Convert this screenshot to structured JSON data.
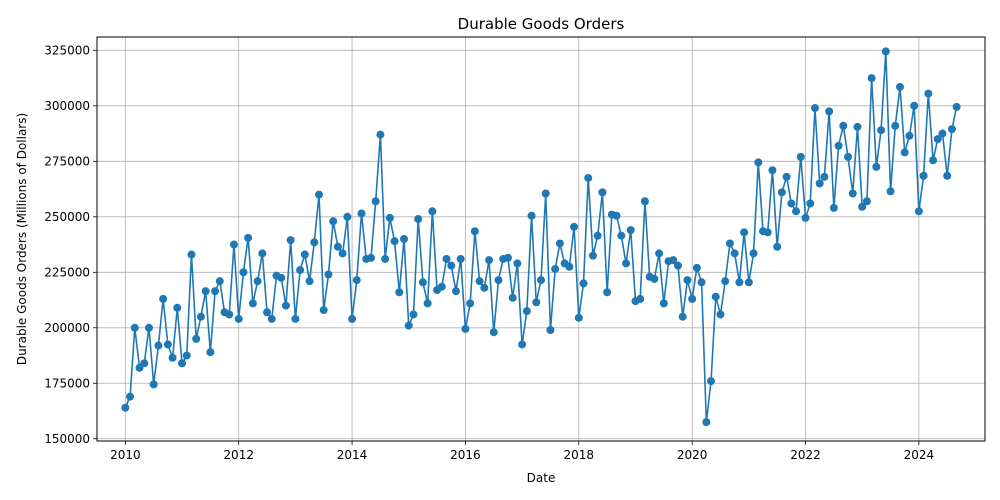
{
  "chart_data": {
    "type": "line",
    "title": "Durable Goods Orders",
    "xlabel": "Date",
    "ylabel": "Durable Goods Orders (Millions of Dollars)",
    "xlim": [
      "2009-07-01",
      "2025-03-01"
    ],
    "ylim": [
      149000,
      331000
    ],
    "x_ticks": [
      "2010",
      "2012",
      "2014",
      "2016",
      "2018",
      "2020",
      "2022",
      "2024"
    ],
    "y_ticks": [
      150000,
      175000,
      200000,
      225000,
      250000,
      275000,
      300000,
      325000
    ],
    "grid": true,
    "line_color": "#1f77b4",
    "series": [
      {
        "start": "2010-01",
        "frequency": "monthly",
        "values": [
          164000,
          169000,
          200000,
          182000,
          184000,
          200000,
          174500,
          192000,
          213000,
          192500,
          186500,
          209000,
          184000,
          187500,
          233000,
          195000,
          205000,
          216500,
          189000,
          216500,
          221000,
          207000,
          206000,
          237500,
          204000,
          225000,
          240500,
          211000,
          221000,
          233500,
          207000,
          204000,
          223500,
          222500,
          210000,
          239500,
          204000,
          226000,
          233000,
          221000,
          238500,
          260000,
          208000,
          224000,
          248000,
          236500,
          233500,
          250000,
          204000,
          221500,
          251500,
          231000,
          231500,
          257000,
          287000,
          231000,
          249500,
          239000,
          216000,
          240000,
          201000,
          206000,
          249000,
          220500,
          211000,
          252500,
          217000,
          218500,
          231000,
          228000,
          216500,
          231000,
          199500,
          211000,
          243500,
          221000,
          218000,
          230500,
          198000,
          221500,
          231000,
          231500,
          213500,
          229000,
          192500,
          207500,
          250500,
          211500,
          221500,
          260500,
          199000,
          226500,
          238000,
          229000,
          227500,
          245500,
          204500,
          220000,
          267500,
          232500,
          241500,
          261000,
          216000,
          251000,
          250500,
          241500,
          229000,
          244000,
          212000,
          213000,
          257000,
          223000,
          222000,
          233500,
          211000,
          230000,
          230500,
          228000,
          205000,
          221500,
          213000,
          227000,
          220500,
          157500,
          176000,
          214000,
          206000,
          221000,
          238000,
          233500,
          220500,
          243000,
          220500,
          233500,
          274500,
          243500,
          243000,
          271000,
          236500,
          261000,
          268000,
          256000,
          252500,
          277000,
          249500,
          256000,
          299000,
          265000,
          268000,
          297500,
          254000,
          282000,
          291000,
          277000,
          260500,
          290500,
          254500,
          257000,
          312500,
          272500,
          289000,
          324500,
          261500,
          291000,
          308500,
          279000,
          286500,
          300000,
          252500,
          268500,
          305500,
          275500,
          285000,
          287500,
          268500,
          289500,
          299500
        ]
      }
    ]
  }
}
